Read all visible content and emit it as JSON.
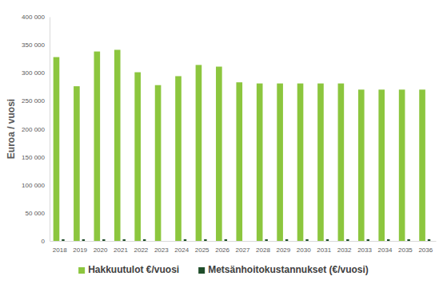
{
  "chart_data": {
    "type": "bar",
    "y_label": "Euroa / vuosi",
    "categories": [
      "2018",
      "2019",
      "2020",
      "2021",
      "2022",
      "2023",
      "2024",
      "2025",
      "2026",
      "2027",
      "2028",
      "2029",
      "2030",
      "2031",
      "2032",
      "2033",
      "2034",
      "2035",
      "2036"
    ],
    "series": [
      {
        "name": "Hakkuutulot €/vuosi",
        "color": "#8cc63e",
        "values": [
          328000,
          276000,
          338000,
          341000,
          301000,
          278000,
          294000,
          314000,
          311000,
          283000,
          281000,
          281000,
          281000,
          281000,
          281000,
          270000,
          270000,
          270000,
          270000
        ]
      },
      {
        "name": "Metsänhoitokustannukset (€/vuosi)",
        "color": "#1f4d2a",
        "values": [
          3000,
          3000,
          3000,
          3000,
          3000,
          0,
          3000,
          3000,
          3000,
          0,
          3000,
          3000,
          3000,
          3000,
          3000,
          3000,
          3000,
          3000,
          3000
        ]
      }
    ],
    "ylim": [
      0,
      400000
    ],
    "yticks": [
      0,
      {
        "value": 50000,
        "label": "50 000"
      },
      {
        "value": 100000,
        "label": "100 000"
      },
      {
        "value": 150000,
        "label": "150 000"
      },
      {
        "value": 200000,
        "label": "200 000"
      },
      {
        "value": 250000,
        "label": "250 000"
      },
      {
        "value": 300000,
        "label": "300 000"
      },
      {
        "value": 350000,
        "label": "350 000"
      },
      {
        "value": 400000,
        "label": "400 000"
      }
    ],
    "grid": false,
    "legend": "bottom"
  }
}
